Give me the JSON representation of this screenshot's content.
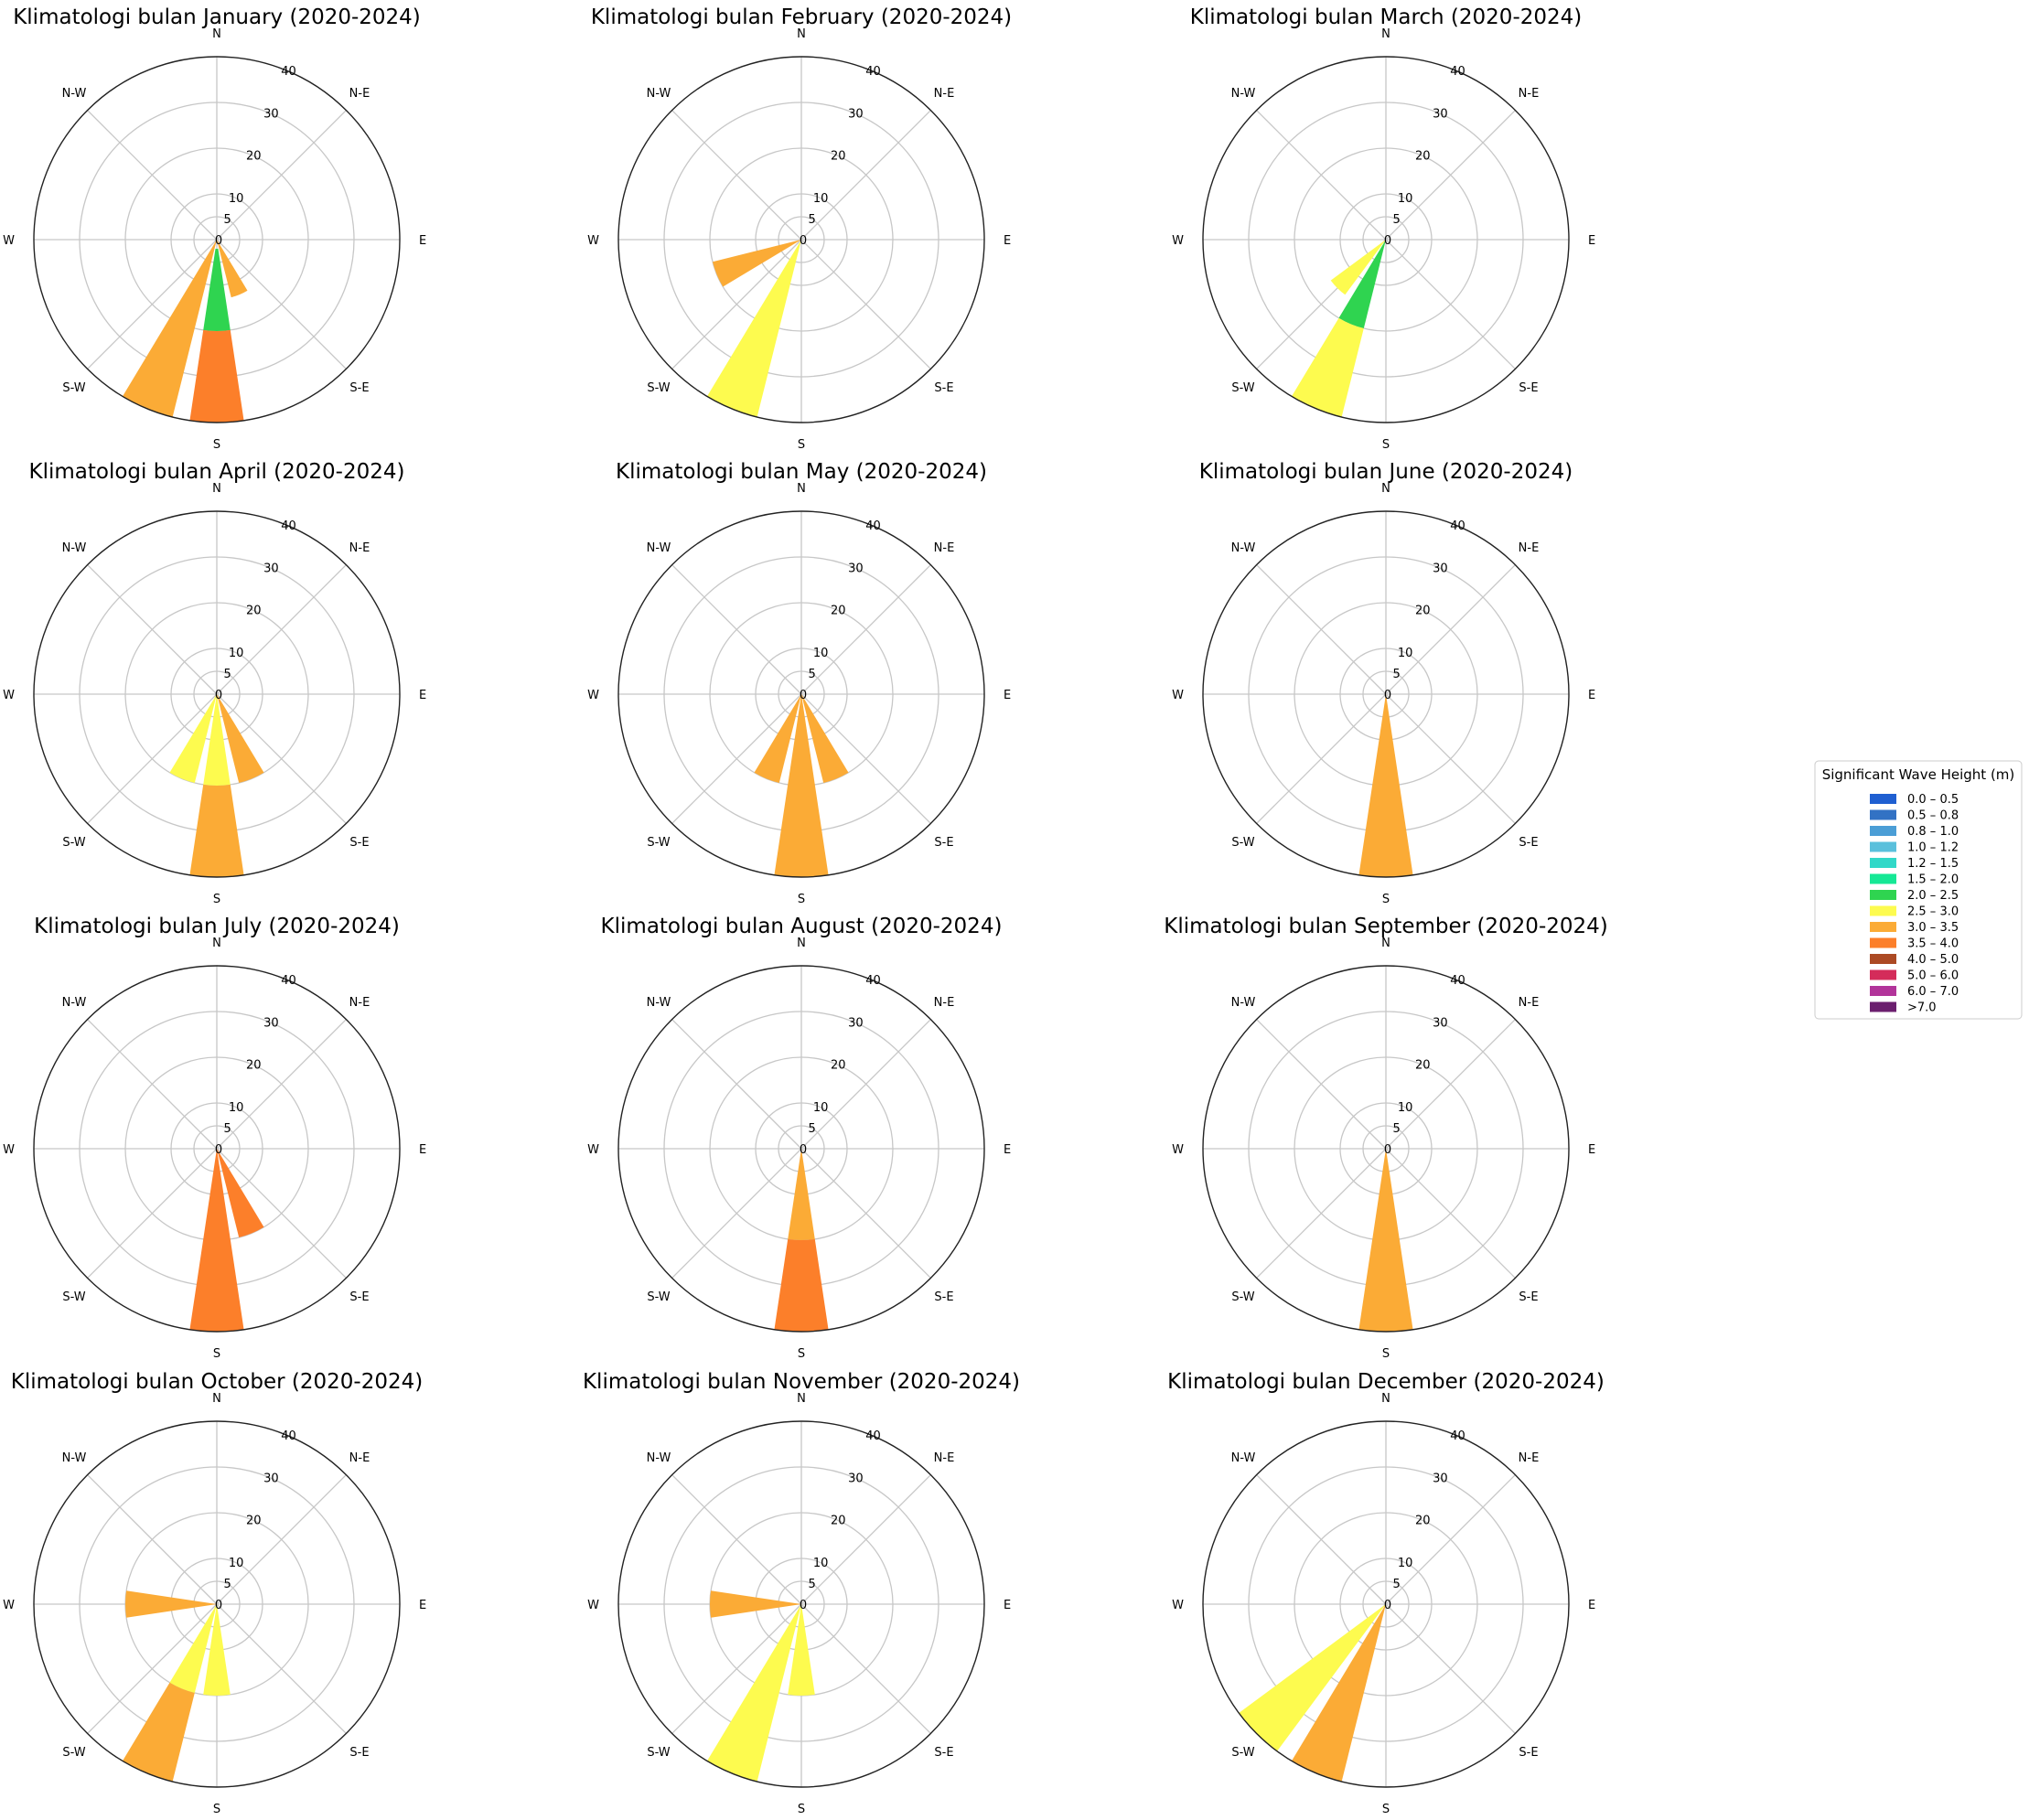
{
  "chart_data": {
    "type": "windrose",
    "directions": [
      "N",
      "N-E",
      "E",
      "S-E",
      "S",
      "S-W",
      "W",
      "N-W"
    ],
    "radial_ticks": [
      0,
      5,
      10,
      20,
      30,
      40
    ],
    "rmax": 40,
    "charts": [
      {
        "title": "Klimatologi bulan January (2020-2024)",
        "bars": [
          {
            "direction": 157.5,
            "segments": [
              {
                "bin": "3.0 – 3.5",
                "from": 0,
                "to": 13
              }
            ]
          },
          {
            "direction": 180,
            "segments": [
              {
                "bin": "2.0 – 2.5",
                "from": 2,
                "to": 20
              },
              {
                "bin": "3.5 – 4.0",
                "from": 20,
                "to": 40
              }
            ]
          },
          {
            "direction": 202.5,
            "segments": [
              {
                "bin": "3.0 – 3.5",
                "from": 0,
                "to": 40
              }
            ]
          }
        ]
      },
      {
        "title": "Klimatologi bulan February (2020-2024)",
        "bars": [
          {
            "direction": 202.5,
            "segments": [
              {
                "bin": "2.5 – 3.0",
                "from": 0,
                "to": 40
              }
            ]
          },
          {
            "direction": 247.5,
            "segments": [
              {
                "bin": "3.0 – 3.5",
                "from": 0,
                "to": 20
              }
            ]
          }
        ]
      },
      {
        "title": "Klimatologi bulan March (2020-2024)",
        "bars": [
          {
            "direction": 202.5,
            "segments": [
              {
                "bin": "2.0 – 2.5",
                "from": 0,
                "to": 20
              },
              {
                "bin": "2.5 – 3.0",
                "from": 20,
                "to": 40
              }
            ]
          },
          {
            "direction": 225,
            "segments": [
              {
                "bin": "2.5 – 3.0",
                "from": 0,
                "to": 15
              }
            ]
          }
        ]
      },
      {
        "title": "Klimatologi bulan April (2020-2024)",
        "bars": [
          {
            "direction": 157.5,
            "segments": [
              {
                "bin": "3.0 – 3.5",
                "from": 0,
                "to": 20
              }
            ]
          },
          {
            "direction": 180,
            "segments": [
              {
                "bin": "2.5 – 3.0",
                "from": 0,
                "to": 20
              },
              {
                "bin": "3.0 – 3.5",
                "from": 20,
                "to": 40
              }
            ]
          },
          {
            "direction": 202.5,
            "segments": [
              {
                "bin": "2.5 – 3.0",
                "from": 0,
                "to": 20
              }
            ]
          }
        ]
      },
      {
        "title": "Klimatologi bulan May (2020-2024)",
        "bars": [
          {
            "direction": 157.5,
            "segments": [
              {
                "bin": "3.0 – 3.5",
                "from": 0,
                "to": 20
              }
            ]
          },
          {
            "direction": 180,
            "segments": [
              {
                "bin": "3.0 – 3.5",
                "from": 0,
                "to": 40
              }
            ]
          },
          {
            "direction": 202.5,
            "segments": [
              {
                "bin": "3.0 – 3.5",
                "from": 0,
                "to": 20
              }
            ]
          }
        ]
      },
      {
        "title": "Klimatologi bulan June (2020-2024)",
        "bars": [
          {
            "direction": 180,
            "segments": [
              {
                "bin": "3.0 – 3.5",
                "from": 0,
                "to": 40
              }
            ]
          }
        ]
      },
      {
        "title": "Klimatologi bulan July (2020-2024)",
        "bars": [
          {
            "direction": 157.5,
            "segments": [
              {
                "bin": "3.5 – 4.0",
                "from": 0,
                "to": 20
              }
            ]
          },
          {
            "direction": 180,
            "segments": [
              {
                "bin": "3.5 – 4.0",
                "from": 0,
                "to": 40
              }
            ]
          }
        ]
      },
      {
        "title": "Klimatologi bulan August (2020-2024)",
        "bars": [
          {
            "direction": 180,
            "segments": [
              {
                "bin": "3.0 – 3.5",
                "from": 0,
                "to": 20
              },
              {
                "bin": "3.5 – 4.0",
                "from": 20,
                "to": 40
              }
            ]
          }
        ]
      },
      {
        "title": "Klimatologi bulan September (2020-2024)",
        "bars": [
          {
            "direction": 180,
            "segments": [
              {
                "bin": "3.0 – 3.5",
                "from": 0,
                "to": 40
              }
            ]
          }
        ]
      },
      {
        "title": "Klimatologi bulan October (2020-2024)",
        "bars": [
          {
            "direction": 180,
            "segments": [
              {
                "bin": "2.5 – 3.0",
                "from": 0,
                "to": 20
              }
            ]
          },
          {
            "direction": 202.5,
            "segments": [
              {
                "bin": "2.5 – 3.0",
                "from": 0,
                "to": 20
              },
              {
                "bin": "3.0 – 3.5",
                "from": 20,
                "to": 40
              }
            ]
          },
          {
            "direction": 270,
            "segments": [
              {
                "bin": "3.0 – 3.5",
                "from": 0,
                "to": 20
              }
            ]
          }
        ]
      },
      {
        "title": "Klimatologi bulan November (2020-2024)",
        "bars": [
          {
            "direction": 180,
            "segments": [
              {
                "bin": "2.5 – 3.0",
                "from": 0,
                "to": 20
              }
            ]
          },
          {
            "direction": 202.5,
            "segments": [
              {
                "bin": "2.5 – 3.0",
                "from": 0,
                "to": 40
              }
            ]
          },
          {
            "direction": 270,
            "segments": [
              {
                "bin": "3.0 – 3.5",
                "from": 0,
                "to": 20
              }
            ]
          }
        ]
      },
      {
        "title": "Klimatologi bulan December (2020-2024)",
        "bars": [
          {
            "direction": 202.5,
            "segments": [
              {
                "bin": "3.0 – 3.5",
                "from": 0,
                "to": 40
              }
            ]
          },
          {
            "direction": 225,
            "segments": [
              {
                "bin": "2.5 – 3.0",
                "from": 0,
                "to": 40
              }
            ]
          }
        ]
      }
    ],
    "legend": {
      "title": "Significant Wave Height (m)",
      "placement": "right",
      "entries": [
        {
          "label": "0.0 – 0.5",
          "color": "#1f5fd1"
        },
        {
          "label": "0.5 – 0.8",
          "color": "#3272c4"
        },
        {
          "label": "0.8 – 1.0",
          "color": "#4b9ed6"
        },
        {
          "label": "1.0 – 1.2",
          "color": "#5ac0dc"
        },
        {
          "label": "1.2 – 1.5",
          "color": "#31d8c8"
        },
        {
          "label": "1.5 – 2.0",
          "color": "#15e895"
        },
        {
          "label": "2.0 – 2.5",
          "color": "#2fd450"
        },
        {
          "label": "2.5 – 3.0",
          "color": "#fdfb4f"
        },
        {
          "label": "3.0 – 3.5",
          "color": "#fbab36"
        },
        {
          "label": "3.5 – 4.0",
          "color": "#fc7f2a"
        },
        {
          "label": "4.0 – 5.0",
          "color": "#ac4a24"
        },
        {
          "label": "5.0 – 6.0",
          "color": "#d42c5a"
        },
        {
          "label": "6.0 – 7.0",
          "color": "#b2349a"
        },
        {
          "label": ">7.0",
          "color": "#6b1f6e"
        }
      ]
    }
  }
}
